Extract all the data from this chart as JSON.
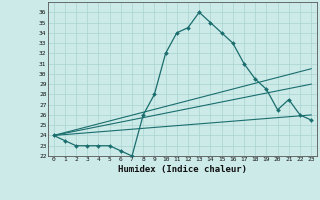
{
  "xlabel": "Humidex (Indice chaleur)",
  "bg_color": "#cceae8",
  "grid_color": "#aad4d2",
  "line_color": "#1a6e6e",
  "ylim": [
    22,
    37
  ],
  "xlim": [
    -0.5,
    23.5
  ],
  "yticks": [
    22,
    23,
    24,
    25,
    26,
    27,
    28,
    29,
    30,
    31,
    32,
    33,
    34,
    35,
    36
  ],
  "xticks": [
    0,
    1,
    2,
    3,
    4,
    5,
    6,
    7,
    8,
    9,
    10,
    11,
    12,
    13,
    14,
    15,
    16,
    17,
    18,
    19,
    20,
    21,
    22,
    23
  ],
  "series_main": {
    "x": [
      0,
      1,
      2,
      3,
      4,
      5,
      6,
      7,
      8,
      9,
      10,
      11,
      12,
      13,
      14,
      15,
      16,
      17,
      18,
      19,
      20,
      21,
      22,
      23
    ],
    "y": [
      24,
      23.5,
      23,
      23,
      23,
      23,
      22.5,
      22,
      26,
      28,
      32,
      34,
      34.5,
      36,
      35,
      34,
      33,
      31,
      29.5,
      28.5,
      26.5,
      27.5,
      26,
      25.5
    ]
  },
  "series_lines": [
    {
      "x0": 0,
      "y0": 24,
      "x1": 23,
      "y1": 30.5
    },
    {
      "x0": 0,
      "y0": 24,
      "x1": 23,
      "y1": 29
    },
    {
      "x0": 0,
      "y0": 24,
      "x1": 23,
      "y1": 26
    }
  ]
}
